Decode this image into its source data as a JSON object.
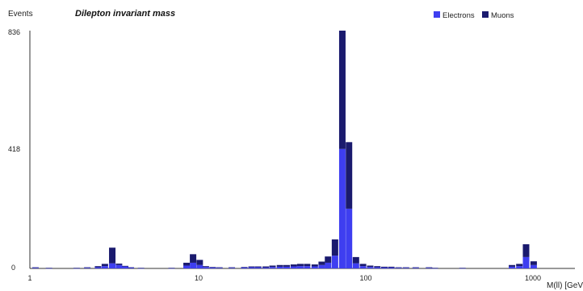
{
  "chart_data": {
    "type": "bar",
    "stacked": true,
    "title": "Dilepton invariant mass",
    "ylabel": "Events",
    "xlabel": "M(ll) [GeV]",
    "x_scale": "log",
    "xlim": [
      1,
      2000
    ],
    "ylim": [
      0,
      836
    ],
    "y_ticks": [
      0,
      418,
      836
    ],
    "y_tick_labels": [
      "0",
      "418",
      "836"
    ],
    "x_ticks": [
      1,
      10,
      100,
      1000
    ],
    "x_tick_labels": [
      "1",
      "10",
      "100",
      "1000"
    ],
    "legend_position": "top-right",
    "grid": false,
    "series": [
      {
        "name": "Electrons",
        "color": "#3e3ef0",
        "values": [
          {
            "x": 1.08,
            "y": 2
          },
          {
            "x": 1.3,
            "y": 1
          },
          {
            "x": 1.9,
            "y": 1
          },
          {
            "x": 2.2,
            "y": 2
          },
          {
            "x": 2.55,
            "y": 4
          },
          {
            "x": 2.8,
            "y": 8
          },
          {
            "x": 3.1,
            "y": 18
          },
          {
            "x": 3.4,
            "y": 12
          },
          {
            "x": 3.7,
            "y": 7
          },
          {
            "x": 4.0,
            "y": 3
          },
          {
            "x": 4.6,
            "y": 1
          },
          {
            "x": 7.0,
            "y": 1
          },
          {
            "x": 8.6,
            "y": 10
          },
          {
            "x": 9.4,
            "y": 20
          },
          {
            "x": 10.3,
            "y": 12
          },
          {
            "x": 11.2,
            "y": 5
          },
          {
            "x": 12.3,
            "y": 3
          },
          {
            "x": 13.5,
            "y": 2
          },
          {
            "x": 16.0,
            "y": 2
          },
          {
            "x": 19.0,
            "y": 3
          },
          {
            "x": 21.0,
            "y": 4
          },
          {
            "x": 23.0,
            "y": 4
          },
          {
            "x": 25.5,
            "y": 3
          },
          {
            "x": 28.0,
            "y": 5
          },
          {
            "x": 31.0,
            "y": 6
          },
          {
            "x": 34.0,
            "y": 6
          },
          {
            "x": 37.5,
            "y": 7
          },
          {
            "x": 41.0,
            "y": 8
          },
          {
            "x": 45.0,
            "y": 8
          },
          {
            "x": 50.0,
            "y": 7
          },
          {
            "x": 55.0,
            "y": 12
          },
          {
            "x": 60.0,
            "y": 20
          },
          {
            "x": 66.0,
            "y": 45
          },
          {
            "x": 73.0,
            "y": 420
          },
          {
            "x": 80.0,
            "y": 210
          },
          {
            "x": 88.0,
            "y": 18
          },
          {
            "x": 97.0,
            "y": 8
          },
          {
            "x": 107.0,
            "y": 5
          },
          {
            "x": 118.0,
            "y": 4
          },
          {
            "x": 130.0,
            "y": 3
          },
          {
            "x": 143.0,
            "y": 3
          },
          {
            "x": 158.0,
            "y": 2
          },
          {
            "x": 175.0,
            "y": 2
          },
          {
            "x": 200.0,
            "y": 2
          },
          {
            "x": 240.0,
            "y": 2
          },
          {
            "x": 260.0,
            "y": 1
          },
          {
            "x": 380.0,
            "y": 1
          },
          {
            "x": 750.0,
            "y": 6
          },
          {
            "x": 830.0,
            "y": 8
          },
          {
            "x": 910.0,
            "y": 40
          },
          {
            "x": 1010.0,
            "y": 12
          }
        ]
      },
      {
        "name": "Muons",
        "color": "#1a1a6e",
        "values": [
          {
            "x": 1.08,
            "y": 2
          },
          {
            "x": 1.3,
            "y": 1
          },
          {
            "x": 1.9,
            "y": 1
          },
          {
            "x": 2.2,
            "y": 2
          },
          {
            "x": 2.55,
            "y": 4
          },
          {
            "x": 2.8,
            "y": 8
          },
          {
            "x": 3.1,
            "y": 55
          },
          {
            "x": 3.4,
            "y": 5
          },
          {
            "x": 3.7,
            "y": 2
          },
          {
            "x": 4.0,
            "y": 1
          },
          {
            "x": 4.6,
            "y": 1
          },
          {
            "x": 7.0,
            "y": 1
          },
          {
            "x": 8.6,
            "y": 10
          },
          {
            "x": 9.4,
            "y": 30
          },
          {
            "x": 10.3,
            "y": 18
          },
          {
            "x": 11.2,
            "y": 3
          },
          {
            "x": 12.3,
            "y": 2
          },
          {
            "x": 13.5,
            "y": 2
          },
          {
            "x": 16.0,
            "y": 2
          },
          {
            "x": 19.0,
            "y": 2
          },
          {
            "x": 21.0,
            "y": 3
          },
          {
            "x": 23.0,
            "y": 3
          },
          {
            "x": 25.5,
            "y": 4
          },
          {
            "x": 28.0,
            "y": 5
          },
          {
            "x": 31.0,
            "y": 6
          },
          {
            "x": 34.0,
            "y": 6
          },
          {
            "x": 37.5,
            "y": 7
          },
          {
            "x": 41.0,
            "y": 8
          },
          {
            "x": 45.0,
            "y": 8
          },
          {
            "x": 50.0,
            "y": 7
          },
          {
            "x": 55.0,
            "y": 12
          },
          {
            "x": 60.0,
            "y": 22
          },
          {
            "x": 66.0,
            "y": 57
          },
          {
            "x": 73.0,
            "y": 416
          },
          {
            "x": 80.0,
            "y": 234
          },
          {
            "x": 88.0,
            "y": 22
          },
          {
            "x": 97.0,
            "y": 8
          },
          {
            "x": 107.0,
            "y": 5
          },
          {
            "x": 118.0,
            "y": 4
          },
          {
            "x": 130.0,
            "y": 3
          },
          {
            "x": 143.0,
            "y": 3
          },
          {
            "x": 158.0,
            "y": 2
          },
          {
            "x": 175.0,
            "y": 2
          },
          {
            "x": 200.0,
            "y": 2
          },
          {
            "x": 240.0,
            "y": 2
          },
          {
            "x": 260.0,
            "y": 1
          },
          {
            "x": 380.0,
            "y": 1
          },
          {
            "x": 750.0,
            "y": 6
          },
          {
            "x": 830.0,
            "y": 8
          },
          {
            "x": 910.0,
            "y": 45
          },
          {
            "x": 1010.0,
            "y": 13
          }
        ]
      }
    ]
  }
}
